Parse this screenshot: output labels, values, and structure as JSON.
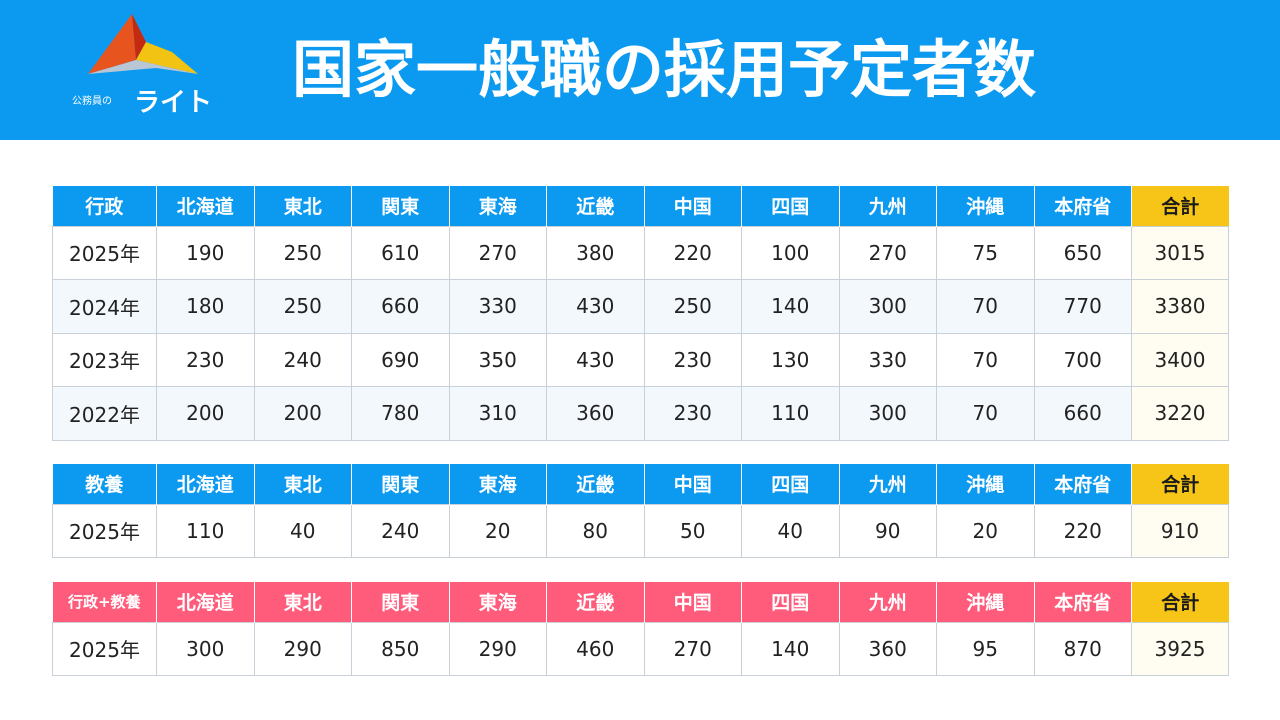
{
  "header": {
    "title": "国家一般職の採用予定者数",
    "logo_small": "公務員の",
    "logo_big": "ライト"
  },
  "colors": {
    "header_bg": "#0c9af0",
    "table_header_blue": "#0c9af0",
    "table_header_pink": "#ff5c7c",
    "total_header": "#f6c517"
  },
  "tables": [
    {
      "headers": [
        "行政",
        "北海道",
        "東北",
        "関東",
        "東海",
        "近畿",
        "中国",
        "四国",
        "九州",
        "沖縄",
        "本府省",
        "合計"
      ],
      "rows": [
        [
          "2025年",
          "190",
          "250",
          "610",
          "270",
          "380",
          "220",
          "100",
          "270",
          "75",
          "650",
          "3015"
        ],
        [
          "2024年",
          "180",
          "250",
          "660",
          "330",
          "430",
          "250",
          "140",
          "300",
          "70",
          "770",
          "3380"
        ],
        [
          "2023年",
          "230",
          "240",
          "690",
          "350",
          "430",
          "230",
          "130",
          "330",
          "70",
          "700",
          "3400"
        ],
        [
          "2022年",
          "200",
          "200",
          "780",
          "310",
          "360",
          "230",
          "110",
          "300",
          "70",
          "660",
          "3220"
        ]
      ]
    },
    {
      "headers": [
        "教養",
        "北海道",
        "東北",
        "関東",
        "東海",
        "近畿",
        "中国",
        "四国",
        "九州",
        "沖縄",
        "本府省",
        "合計"
      ],
      "rows": [
        [
          "2025年",
          "110",
          "40",
          "240",
          "20",
          "80",
          "50",
          "40",
          "90",
          "20",
          "220",
          "910"
        ]
      ]
    },
    {
      "headers": [
        "行政+教養",
        "北海道",
        "東北",
        "関東",
        "東海",
        "近畿",
        "中国",
        "四国",
        "九州",
        "沖縄",
        "本府省",
        "合計"
      ],
      "rows": [
        [
          "2025年",
          "300",
          "290",
          "850",
          "290",
          "460",
          "270",
          "140",
          "360",
          "95",
          "870",
          "3925"
        ]
      ]
    }
  ]
}
